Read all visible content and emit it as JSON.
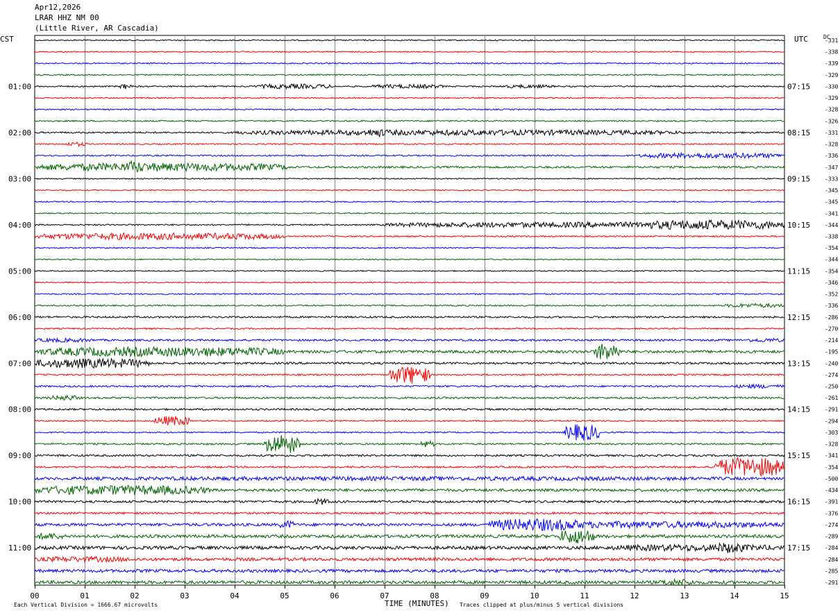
{
  "header": {
    "date": "Apr12,2026",
    "station": "LRAR HHZ NM 00",
    "location": "(Little River, AR Cascadia)"
  },
  "left_axis_label": "CST",
  "right_axis_label": "UTC",
  "dc_label": "DC",
  "footer": {
    "left_note": "Each Vertical Division = 1666.67 microvolts",
    "x_title": "TIME (MINUTES)",
    "right_note": "Traces clipped at plus/minus 5 vertical divisions"
  },
  "chart_data": {
    "type": "line",
    "title": "LRAR HHZ NM 00",
    "xlabel": "TIME (MINUTES)",
    "xlim": [
      0,
      15
    ],
    "x_ticks": [
      "00",
      "01",
      "02",
      "03",
      "04",
      "05",
      "06",
      "07",
      "08",
      "09",
      "10",
      "11",
      "12",
      "13",
      "14",
      "15"
    ],
    "line_count": 48,
    "minutes_per_line": 15,
    "trace_color_cycle": [
      "#000000",
      "#ff0000",
      "#0000ff",
      "#006400"
    ],
    "hour_labels_cst": [
      {
        "line": 4,
        "label": "01:00"
      },
      {
        "line": 8,
        "label": "02:00"
      },
      {
        "line": 12,
        "label": "03:00"
      },
      {
        "line": 16,
        "label": "04:00"
      },
      {
        "line": 20,
        "label": "05:00"
      },
      {
        "line": 24,
        "label": "06:00"
      },
      {
        "line": 28,
        "label": "07:00"
      },
      {
        "line": 32,
        "label": "08:00"
      },
      {
        "line": 36,
        "label": "09:00"
      },
      {
        "line": 40,
        "label": "10:00"
      },
      {
        "line": 44,
        "label": "11:00"
      }
    ],
    "hour_labels_utc": [
      {
        "line": 4,
        "label": "07:15"
      },
      {
        "line": 8,
        "label": "08:15"
      },
      {
        "line": 12,
        "label": "09:15"
      },
      {
        "line": 16,
        "label": "10:15"
      },
      {
        "line": 20,
        "label": "11:15"
      },
      {
        "line": 24,
        "label": "12:15"
      },
      {
        "line": 28,
        "label": "13:15"
      },
      {
        "line": 32,
        "label": "14:15"
      },
      {
        "line": 36,
        "label": "15:15"
      },
      {
        "line": 40,
        "label": "16:15"
      },
      {
        "line": 44,
        "label": "17:15"
      }
    ],
    "dc_offsets": [
      "-331",
      "-338",
      "-339",
      "-329",
      "-330",
      "-329",
      "-328",
      "-326",
      "-331",
      "-328",
      "-336",
      "-347",
      "-333",
      "-345",
      "-345",
      "-341",
      "-344",
      "-338",
      "-354",
      "-344",
      "-354",
      "-346",
      "-352",
      "-336",
      "-286",
      "-270",
      "-214",
      "-195",
      "-240",
      "-274",
      "-250",
      "-261",
      "-291",
      "-294",
      "-303",
      "-328",
      "-341",
      "-354",
      "-500",
      "-434",
      "-391",
      "-376",
      "-274",
      "-289",
      "-284",
      "-284",
      "-285",
      "-291"
    ],
    "base_noise": [
      0.8,
      0.8,
      0.9,
      0.9,
      1.0,
      0.9,
      0.9,
      1.0,
      1.2,
      0.9,
      1.0,
      1.4,
      0.8,
      0.8,
      0.8,
      0.8,
      1.0,
      1.0,
      0.8,
      0.8,
      0.8,
      0.8,
      0.9,
      1.0,
      1.3,
      1.0,
      1.4,
      2.0,
      1.5,
      1.1,
      1.2,
      1.3,
      1.3,
      1.0,
      1.0,
      1.2,
      1.4,
      1.3,
      1.8,
      2.0,
      1.6,
      1.4,
      2.0,
      2.2,
      2.4,
      2.2,
      2.2,
      2.3
    ],
    "events": [
      {
        "line": 4,
        "start": 1.7,
        "end": 1.95,
        "amp": 4
      },
      {
        "line": 4,
        "start": 4.4,
        "end": 6.0,
        "amp": 3.5
      },
      {
        "line": 4,
        "start": 6.7,
        "end": 8.2,
        "amp": 3
      },
      {
        "line": 4,
        "start": 9.3,
        "end": 10.4,
        "amp": 2.5
      },
      {
        "line": 8,
        "start": 4.0,
        "end": 13.0,
        "amp": 4
      },
      {
        "line": 8,
        "start": 6.6,
        "end": 7.1,
        "amp": 6
      },
      {
        "line": 9,
        "start": 0.6,
        "end": 1.05,
        "amp": 3
      },
      {
        "line": 10,
        "start": 12.1,
        "end": 15.0,
        "amp": 4
      },
      {
        "line": 11,
        "start": 0.0,
        "end": 5.1,
        "amp": 6
      },
      {
        "line": 11,
        "start": 1.8,
        "end": 2.2,
        "amp": 9
      },
      {
        "line": 16,
        "start": 7.0,
        "end": 15.0,
        "amp": 4
      },
      {
        "line": 16,
        "start": 12.0,
        "end": 15.0,
        "amp": 7
      },
      {
        "line": 17,
        "start": 0.0,
        "end": 5.0,
        "amp": 5
      },
      {
        "line": 23,
        "start": 13.8,
        "end": 15.0,
        "amp": 3
      },
      {
        "line": 26,
        "start": 0.0,
        "end": 1.2,
        "amp": 3
      },
      {
        "line": 26,
        "start": 14.2,
        "end": 15.0,
        "amp": 3
      },
      {
        "line": 27,
        "start": 0.0,
        "end": 5.0,
        "amp": 7
      },
      {
        "line": 27,
        "start": 11.2,
        "end": 11.7,
        "amp": 13
      },
      {
        "line": 28,
        "start": 0.0,
        "end": 2.3,
        "amp": 7
      },
      {
        "line": 29,
        "start": 7.1,
        "end": 7.9,
        "amp": 13
      },
      {
        "line": 30,
        "start": 14.0,
        "end": 15.0,
        "amp": 3
      },
      {
        "line": 31,
        "start": 0.3,
        "end": 0.9,
        "amp": 4
      },
      {
        "line": 33,
        "start": 2.4,
        "end": 3.1,
        "amp": 7
      },
      {
        "line": 34,
        "start": 10.6,
        "end": 11.3,
        "amp": 12
      },
      {
        "line": 35,
        "start": 4.6,
        "end": 5.3,
        "amp": 14
      },
      {
        "line": 35,
        "start": 7.7,
        "end": 8.0,
        "amp": 5
      },
      {
        "line": 37,
        "start": 13.6,
        "end": 15.0,
        "amp": 14
      },
      {
        "line": 38,
        "start": 0.0,
        "end": 15.0,
        "amp": 3
      },
      {
        "line": 39,
        "start": 0.0,
        "end": 3.5,
        "amp": 7
      },
      {
        "line": 40,
        "start": 5.6,
        "end": 5.9,
        "amp": 5
      },
      {
        "line": 42,
        "start": 4.9,
        "end": 5.2,
        "amp": 6
      },
      {
        "line": 42,
        "start": 9.0,
        "end": 15.0,
        "amp": 5
      },
      {
        "line": 42,
        "start": 9.1,
        "end": 11.0,
        "amp": 9
      },
      {
        "line": 43,
        "start": 10.5,
        "end": 11.2,
        "amp": 11
      },
      {
        "line": 43,
        "start": 0.0,
        "end": 0.6,
        "amp": 5
      },
      {
        "line": 44,
        "start": 11.5,
        "end": 15.0,
        "amp": 5
      },
      {
        "line": 44,
        "start": 13.6,
        "end": 14.2,
        "amp": 8
      },
      {
        "line": 45,
        "start": 0.0,
        "end": 2.0,
        "amp": 4
      },
      {
        "line": 47,
        "start": 12.5,
        "end": 13.2,
        "amp": 5
      }
    ]
  }
}
